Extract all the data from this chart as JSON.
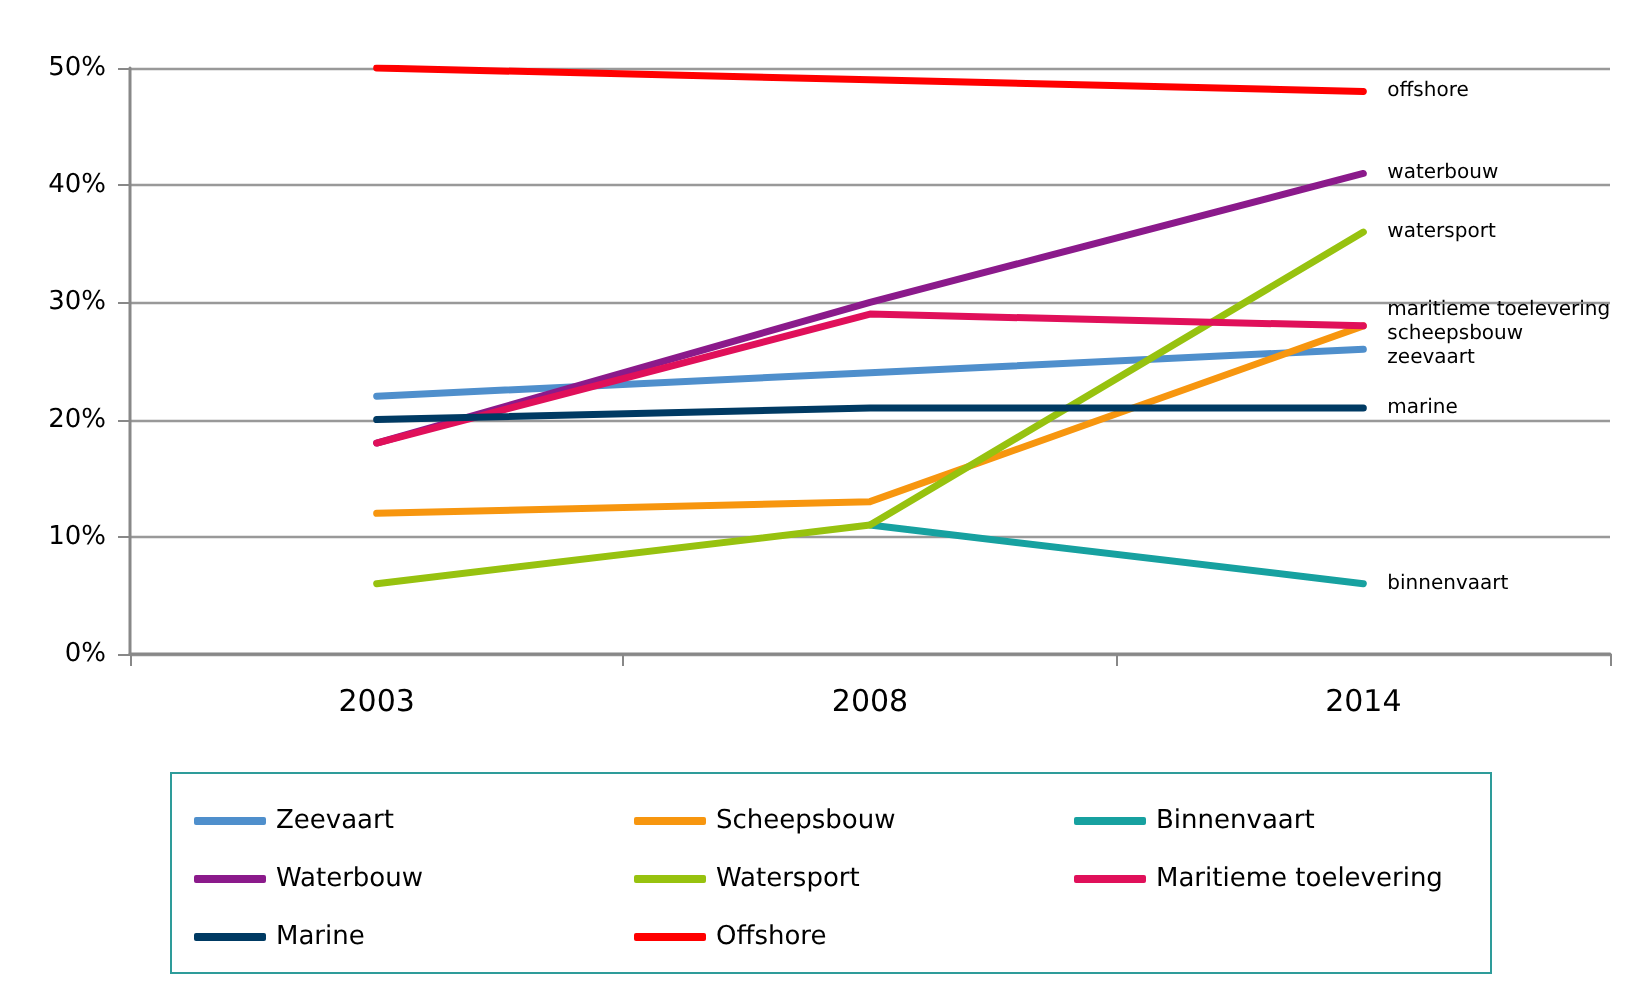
{
  "chart_data": {
    "type": "line",
    "categories": [
      "2003",
      "2008",
      "2014"
    ],
    "series": [
      {
        "name": "Zeevaart",
        "color": "#4f8fcc",
        "values": [
          22,
          24,
          26
        ]
      },
      {
        "name": "Scheepsbouw",
        "color": "#f7960f",
        "values": [
          12,
          13,
          28
        ]
      },
      {
        "name": "Binnenvaart",
        "color": "#17a1a0",
        "values": [
          null,
          11,
          6
        ]
      },
      {
        "name": "Waterbouw",
        "color": "#8b1a8b",
        "values": [
          18,
          30,
          41
        ]
      },
      {
        "name": "Watersport",
        "color": "#97c20f",
        "values": [
          6,
          11,
          36
        ]
      },
      {
        "name": "Maritieme toelevering",
        "color": "#e0105a",
        "values": [
          18,
          29,
          28
        ]
      },
      {
        "name": "Marine",
        "color": "#003a63",
        "values": [
          20,
          21,
          21
        ]
      },
      {
        "name": "Offshore",
        "color": "#ff0000",
        "values": [
          50,
          49,
          48
        ]
      }
    ],
    "ylim": [
      0,
      50
    ],
    "yticks": [
      {
        "value": 0,
        "label": "0%"
      },
      {
        "value": 10,
        "label": "10%"
      },
      {
        "value": 20,
        "label": "20%"
      },
      {
        "value": 30,
        "label": "30%"
      },
      {
        "value": 40,
        "label": "40%"
      },
      {
        "value": 50,
        "label": "50%"
      }
    ],
    "grid": "y",
    "legend": "bottom",
    "marker": "none",
    "line_style": "solid",
    "annotations": [
      {
        "text": "offshore",
        "x": "2014",
        "y": 48
      },
      {
        "text": "waterbouw",
        "x": "2014",
        "y": 41
      },
      {
        "text": "watersport",
        "x": "2014",
        "y": 36
      },
      {
        "text": "maritieme toelevering",
        "x": "2014",
        "y": 28
      },
      {
        "text": "scheepsbouw",
        "x": "2014",
        "y": 28
      },
      {
        "text": "zeevaart",
        "x": "2014",
        "y": 26
      },
      {
        "text": "marine",
        "x": "2014",
        "y": 21
      },
      {
        "text": "binnenvaart",
        "x": "2014",
        "y": 6
      }
    ]
  }
}
